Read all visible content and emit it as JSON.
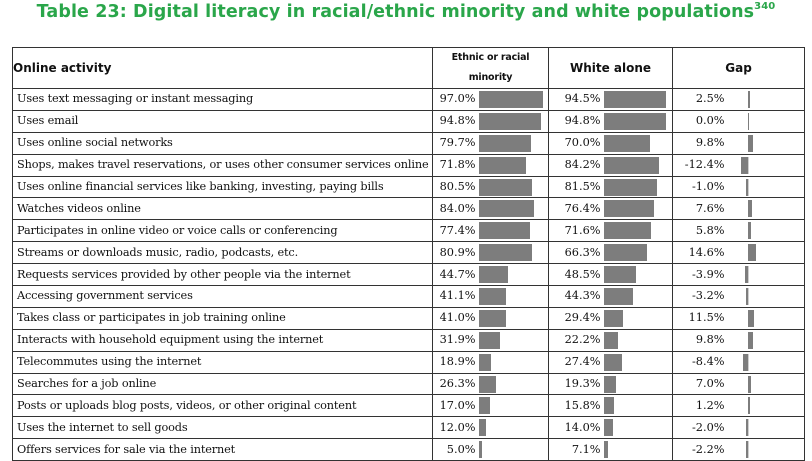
{
  "title": "Table 23: Digital literacy in racial/ethnic minority and white populations",
  "title_sup": "340",
  "headers": {
    "activity": "Online activity",
    "ethnic": "Ethnic or racial minority",
    "white": "White alone",
    "gap": "Gap"
  },
  "bar_color": "#7d7d7d",
  "title_color": "#2aa64a",
  "rows": [
    {
      "activity": "Uses text messaging or instant messaging",
      "ethnic": "97.0%",
      "white": "94.5%",
      "gap": "2.5%",
      "ev": 97.0,
      "wv": 94.5,
      "gv": 2.5
    },
    {
      "activity": "Uses email",
      "ethnic": "94.8%",
      "white": "94.8%",
      "gap": "0.0%",
      "ev": 94.8,
      "wv": 94.8,
      "gv": 0.0
    },
    {
      "activity": "Uses online social networks",
      "ethnic": "79.7%",
      "white": "70.0%",
      "gap": "9.8%",
      "ev": 79.7,
      "wv": 70.0,
      "gv": 9.8
    },
    {
      "activity": "Shops, makes travel reservations, or uses other consumer services online",
      "ethnic": "71.8%",
      "white": "84.2%",
      "gap": "-12.4%",
      "ev": 71.8,
      "wv": 84.2,
      "gv": -12.4
    },
    {
      "activity": "Uses online financial services like banking, investing, paying bills",
      "ethnic": "80.5%",
      "white": "81.5%",
      "gap": "-1.0%",
      "ev": 80.5,
      "wv": 81.5,
      "gv": -1.0
    },
    {
      "activity": "Watches videos online",
      "ethnic": "84.0%",
      "white": "76.4%",
      "gap": "7.6%",
      "ev": 84.0,
      "wv": 76.4,
      "gv": 7.6
    },
    {
      "activity": "Participates in online video or voice calls or conferencing",
      "ethnic": "77.4%",
      "white": "71.6%",
      "gap": "5.8%",
      "ev": 77.4,
      "wv": 71.6,
      "gv": 5.8
    },
    {
      "activity": "Streams or downloads music, radio, podcasts, etc.",
      "ethnic": "80.9%",
      "white": "66.3%",
      "gap": "14.6%",
      "ev": 80.9,
      "wv": 66.3,
      "gv": 14.6
    },
    {
      "activity": "Requests services provided by other people via the internet",
      "ethnic": "44.7%",
      "white": "48.5%",
      "gap": "-3.9%",
      "ev": 44.7,
      "wv": 48.5,
      "gv": -3.9
    },
    {
      "activity": "Accessing government services",
      "ethnic": "41.1%",
      "white": "44.3%",
      "gap": "-3.2%",
      "ev": 41.1,
      "wv": 44.3,
      "gv": -3.2
    },
    {
      "activity": "Takes class or participates in job training online",
      "ethnic": "41.0%",
      "white": "29.4%",
      "gap": "11.5%",
      "ev": 41.0,
      "wv": 29.4,
      "gv": 11.5
    },
    {
      "activity": "Interacts with household equipment using the internet",
      "ethnic": "31.9%",
      "white": "22.2%",
      "gap": "9.8%",
      "ev": 31.9,
      "wv": 22.2,
      "gv": 9.8
    },
    {
      "activity": "Telecommutes using the internet",
      "ethnic": "18.9%",
      "white": "27.4%",
      "gap": "-8.4%",
      "ev": 18.9,
      "wv": 27.4,
      "gv": -8.4
    },
    {
      "activity": "Searches for a job online",
      "ethnic": "26.3%",
      "white": "19.3%",
      "gap": "7.0%",
      "ev": 26.3,
      "wv": 19.3,
      "gv": 7.0
    },
    {
      "activity": "Posts or uploads blog posts, videos, or other original content",
      "ethnic": "17.0%",
      "white": "15.8%",
      "gap": "1.2%",
      "ev": 17.0,
      "wv": 15.8,
      "gv": 1.2
    },
    {
      "activity": "Uses the internet to sell goods",
      "ethnic": "12.0%",
      "white": "14.0%",
      "gap": "-2.0%",
      "ev": 12.0,
      "wv": 14.0,
      "gv": -2.0
    },
    {
      "activity": "Offers services for sale via the internet",
      "ethnic": "5.0%",
      "white": "7.1%",
      "gap": "-2.2%",
      "ev": 5.0,
      "wv": 7.1,
      "gv": -2.2
    }
  ]
}
